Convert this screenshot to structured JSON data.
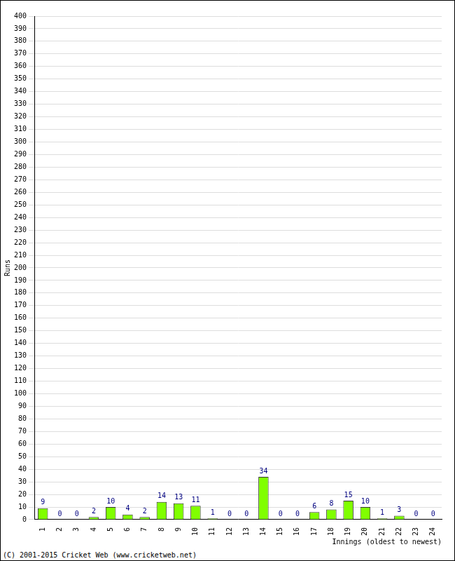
{
  "chart_data": {
    "type": "bar",
    "categories": [
      "1",
      "2",
      "3",
      "4",
      "5",
      "6",
      "7",
      "8",
      "9",
      "10",
      "11",
      "12",
      "13",
      "14",
      "15",
      "16",
      "17",
      "18",
      "19",
      "20",
      "21",
      "22",
      "23",
      "24"
    ],
    "values": [
      9,
      0,
      0,
      2,
      10,
      4,
      2,
      14,
      13,
      11,
      1,
      0,
      0,
      34,
      0,
      0,
      6,
      8,
      15,
      10,
      1,
      3,
      0,
      0
    ],
    "color": "#80ff00",
    "x_label": "Innings (oldest to newest)",
    "y_label": "Runs",
    "annotations": [
      "(C) 2001-2015 Cricket Web (www.cricketweb.net)"
    ],
    "ylim": [
      0,
      400
    ],
    "yticks": [
      0,
      10,
      20,
      30,
      40,
      50,
      60,
      70,
      80,
      90,
      100,
      110,
      120,
      130,
      140,
      150,
      160,
      170,
      180,
      190,
      200,
      210,
      220,
      230,
      240,
      250,
      260,
      270,
      280,
      290,
      300,
      310,
      320,
      330,
      340,
      350,
      360,
      370,
      380,
      390,
      400
    ],
    "grid": true,
    "data_labels": true
  }
}
